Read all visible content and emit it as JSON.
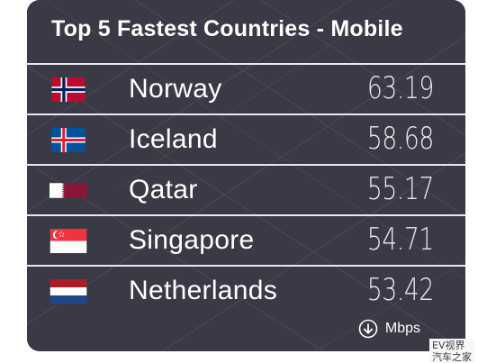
{
  "header": {
    "title": "Top 5 Fastest Countries - Mobile"
  },
  "rows": [
    {
      "country": "Norway",
      "speed": "63.19",
      "flag_icon": "norway-flag-icon"
    },
    {
      "country": "Iceland",
      "speed": "58.68",
      "flag_icon": "iceland-flag-icon"
    },
    {
      "country": "Qatar",
      "speed": "55.17",
      "flag_icon": "qatar-flag-icon"
    },
    {
      "country": "Singapore",
      "speed": "54.71",
      "flag_icon": "singapore-flag-icon"
    },
    {
      "country": "Netherlands",
      "speed": "53.42",
      "flag_icon": "netherlands-flag-icon"
    }
  ],
  "footer": {
    "unit_label": "Mbps",
    "unit_icon": "download-arrow-icon"
  },
  "watermark": {
    "line1": "EV视界",
    "line2": "汽车之家"
  },
  "colors": {
    "card_background": "#3b3b46",
    "text": "#ffffff",
    "divider": "#e8e8ee"
  }
}
